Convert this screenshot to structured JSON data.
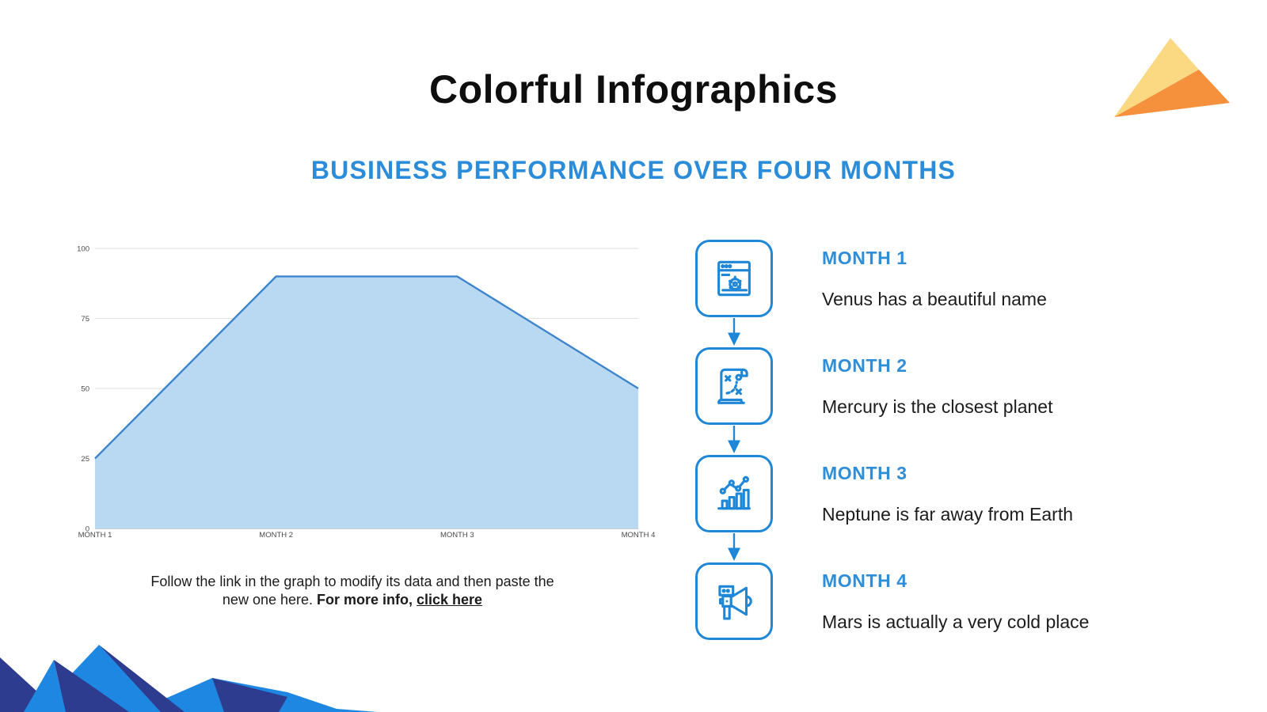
{
  "slide": {
    "title": "Colorful Infographics",
    "subtitle": "BUSINESS PERFORMANCE OVER FOUR MONTHS",
    "background": "#ffffff",
    "accent_blue": "#1e87d8",
    "heading_blue": "#2e8ed8"
  },
  "chart_data": {
    "type": "area",
    "title": "",
    "xlabel": "",
    "ylabel": "",
    "categories": [
      "MONTH 1",
      "MONTH 2",
      "MONTH 3",
      "MONTH 4"
    ],
    "values": [
      25,
      90,
      90,
      50
    ],
    "ylim": [
      0,
      100
    ],
    "yticks": [
      0,
      25,
      50,
      75,
      100
    ],
    "grid": true,
    "legend_position": "none",
    "line_color": "#3d84cd",
    "fill_color": "#b9d8f2",
    "gridline_color": "#e2e2e2",
    "axis_line_color": "#9b9b9b",
    "tick_label_color": "#4a4a4a"
  },
  "note": {
    "line1": "Follow the link in the graph to modify its data and then paste the",
    "line2_prefix": "new one here. ",
    "line2_bold": "For more info, ",
    "link_text": "click here"
  },
  "timeline": {
    "items": [
      {
        "heading": "MONTH 1",
        "description": "Venus has a beautiful name",
        "icon": "browser-gear-icon"
      },
      {
        "heading": "MONTH 2",
        "description": "Mercury is the closest planet",
        "icon": "strategy-scroll-icon"
      },
      {
        "heading": "MONTH 3",
        "description": "Neptune is far away from Earth",
        "icon": "analytics-chart-icon"
      },
      {
        "heading": "MONTH 4",
        "description": "Mars is actually a very cold place",
        "icon": "megaphone-icon"
      }
    ]
  },
  "decor": {
    "kite_yellow": "#fbd983",
    "kite_orange": "#f5913d",
    "mountain_navy": "#2e3c90",
    "mountain_bright": "#1e87e2"
  }
}
